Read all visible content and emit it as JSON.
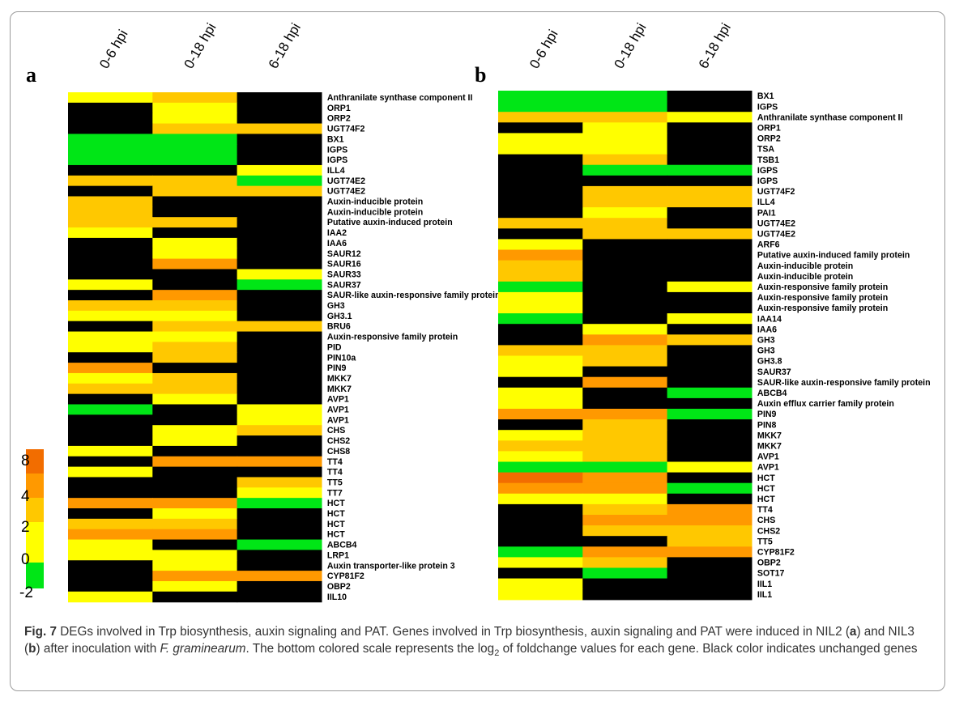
{
  "figure": {
    "caption_label": "Fig. 7",
    "caption_title": " DEGs involved in Trp biosynthesis, auxin signaling and PAT. Genes involved in Trp biosynthesis, auxin signaling and PAT were induced in NIL2 (",
    "caption_a": "a",
    "caption_mid1": ") and NIL3 (",
    "caption_b": "b",
    "caption_mid2": ") after inoculation with ",
    "caption_species": "F. graminearum",
    "caption_mid3": ". The bottom colored scale represents the log",
    "caption_sub": "2",
    "caption_end": " of foldchange values for each gene. Black color indicates unchanged genes"
  },
  "colors": {
    "black": "#000000",
    "green": "#00e616",
    "yellow": "#ffff00",
    "light_orange": "#ffc800",
    "orange": "#ff9900",
    "dark_orange": "#f26d00"
  },
  "chart_data": [
    {
      "type": "heatmap",
      "panel": "a",
      "columns": [
        "0-6 hpi",
        "0-18 hpi",
        "6-18 hpi"
      ],
      "value_scale": "log2 fold change",
      "rows": [
        {
          "gene": "Anthranilate synthase component II",
          "values": [
            0,
            2,
            null
          ]
        },
        {
          "gene": "ORP1",
          "values": [
            null,
            0,
            null
          ]
        },
        {
          "gene": "ORP2",
          "values": [
            null,
            0,
            null
          ]
        },
        {
          "gene": "UGT74F2",
          "values": [
            null,
            2,
            2
          ]
        },
        {
          "gene": "BX1",
          "values": [
            -2,
            -2,
            null
          ]
        },
        {
          "gene": "IGPS",
          "values": [
            -2,
            -2,
            null
          ]
        },
        {
          "gene": "IGPS",
          "values": [
            -2,
            -2,
            null
          ]
        },
        {
          "gene": "ILL4",
          "values": [
            null,
            null,
            0
          ]
        },
        {
          "gene": "UGT74E2",
          "values": [
            2,
            2,
            -2
          ]
        },
        {
          "gene": "UGT74E2",
          "values": [
            null,
            2,
            2
          ]
        },
        {
          "gene": "Auxin-inducible protein",
          "values": [
            2,
            null,
            null
          ]
        },
        {
          "gene": "Auxin-inducible protein",
          "values": [
            2,
            null,
            null
          ]
        },
        {
          "gene": "Putative auxin-induced protein",
          "values": [
            2,
            2,
            null
          ]
        },
        {
          "gene": "IAA2",
          "values": [
            0,
            null,
            null
          ]
        },
        {
          "gene": "IAA6",
          "values": [
            null,
            0,
            null
          ]
        },
        {
          "gene": "SAUR12",
          "values": [
            null,
            0,
            null
          ]
        },
        {
          "gene": "SAUR16",
          "values": [
            null,
            4,
            null
          ]
        },
        {
          "gene": "SAUR33",
          "values": [
            null,
            null,
            0
          ]
        },
        {
          "gene": "SAUR37",
          "values": [
            0,
            null,
            -2
          ]
        },
        {
          "gene": "SAUR-like auxin-responsive family protein",
          "values": [
            null,
            4,
            null
          ]
        },
        {
          "gene": "GH3",
          "values": [
            2,
            2,
            null
          ]
        },
        {
          "gene": "GH3.1",
          "values": [
            0,
            0,
            null
          ]
        },
        {
          "gene": "BRU6",
          "values": [
            null,
            2,
            2
          ]
        },
        {
          "gene": "Auxin-responsive family protein",
          "values": [
            0,
            0,
            null
          ]
        },
        {
          "gene": "PID",
          "values": [
            0,
            2,
            null
          ]
        },
        {
          "gene": "PIN10a",
          "values": [
            null,
            2,
            null
          ]
        },
        {
          "gene": "PIN9",
          "values": [
            4,
            null,
            null
          ]
        },
        {
          "gene": "MKK7",
          "values": [
            0,
            2,
            null
          ]
        },
        {
          "gene": "MKK7",
          "values": [
            2,
            2,
            null
          ]
        },
        {
          "gene": "AVP1",
          "values": [
            null,
            0,
            null
          ]
        },
        {
          "gene": "AVP1",
          "values": [
            -2,
            null,
            0
          ]
        },
        {
          "gene": "AVP1",
          "values": [
            null,
            null,
            0
          ]
        },
        {
          "gene": "CHS",
          "values": [
            null,
            0,
            2
          ]
        },
        {
          "gene": "CHS2",
          "values": [
            null,
            0,
            null
          ]
        },
        {
          "gene": "CHS8",
          "values": [
            0,
            null,
            null
          ]
        },
        {
          "gene": "TT4",
          "values": [
            null,
            4,
            4
          ]
        },
        {
          "gene": "TT4",
          "values": [
            0,
            null,
            null
          ]
        },
        {
          "gene": "TT5",
          "values": [
            null,
            null,
            2
          ]
        },
        {
          "gene": "TT7",
          "values": [
            null,
            null,
            0
          ]
        },
        {
          "gene": "HCT",
          "values": [
            4,
            4,
            -2
          ]
        },
        {
          "gene": "HCT",
          "values": [
            null,
            0,
            null
          ]
        },
        {
          "gene": "HCT",
          "values": [
            2,
            2,
            null
          ]
        },
        {
          "gene": "HCT",
          "values": [
            4,
            4,
            null
          ]
        },
        {
          "gene": "ABCB4",
          "values": [
            0,
            null,
            -2
          ]
        },
        {
          "gene": "LRP1",
          "values": [
            0,
            0,
            null
          ]
        },
        {
          "gene": "Auxin transporter-like protein 3",
          "values": [
            null,
            0,
            null
          ]
        },
        {
          "gene": "CYP81F2",
          "values": [
            null,
            4,
            4
          ]
        },
        {
          "gene": "OBP2",
          "values": [
            null,
            0,
            null
          ]
        },
        {
          "gene": "IIL10",
          "values": [
            0,
            null,
            null
          ]
        }
      ]
    },
    {
      "type": "heatmap",
      "panel": "b",
      "columns": [
        "0-6 hpi",
        "0-18 hpi",
        "6-18 hpi"
      ],
      "value_scale": "log2 fold change",
      "rows": [
        {
          "gene": "BX1",
          "values": [
            -2,
            -2,
            null
          ]
        },
        {
          "gene": "IGPS",
          "values": [
            -2,
            -2,
            null
          ]
        },
        {
          "gene": "Anthranilate synthase component II",
          "values": [
            2,
            2,
            0
          ]
        },
        {
          "gene": "ORP1",
          "values": [
            null,
            0,
            null
          ]
        },
        {
          "gene": "ORP2",
          "values": [
            0,
            0,
            null
          ]
        },
        {
          "gene": "TSA",
          "values": [
            0,
            0,
            null
          ]
        },
        {
          "gene": "TSB1",
          "values": [
            null,
            2,
            null
          ]
        },
        {
          "gene": "IGPS",
          "values": [
            null,
            -2,
            -2
          ]
        },
        {
          "gene": "IGPS",
          "values": [
            null,
            null,
            null
          ]
        },
        {
          "gene": "UGT74F2",
          "values": [
            null,
            2,
            2
          ]
        },
        {
          "gene": "ILL4",
          "values": [
            null,
            2,
            2
          ]
        },
        {
          "gene": "PAI1",
          "values": [
            null,
            0,
            null
          ]
        },
        {
          "gene": "UGT74E2",
          "values": [
            2,
            2,
            null
          ]
        },
        {
          "gene": "UGT74E2",
          "values": [
            null,
            2,
            2
          ]
        },
        {
          "gene": "ARF6",
          "values": [
            0,
            null,
            null
          ]
        },
        {
          "gene": "Putative auxin-induced family protein",
          "values": [
            4,
            null,
            null
          ]
        },
        {
          "gene": "Auxin-inducible protein",
          "values": [
            2,
            null,
            null
          ]
        },
        {
          "gene": "Auxin-inducible protein",
          "values": [
            2,
            null,
            null
          ]
        },
        {
          "gene": "Auxin-responsive family protein",
          "values": [
            -2,
            null,
            0
          ]
        },
        {
          "gene": "Auxin-responsive family protein",
          "values": [
            0,
            null,
            null
          ]
        },
        {
          "gene": "Auxin-responsive family protein",
          "values": [
            0,
            null,
            null
          ]
        },
        {
          "gene": "IAA14",
          "values": [
            -2,
            null,
            0
          ]
        },
        {
          "gene": "IAA6",
          "values": [
            null,
            0,
            null
          ]
        },
        {
          "gene": "GH3",
          "values": [
            null,
            4,
            2
          ]
        },
        {
          "gene": "GH3",
          "values": [
            2,
            2,
            null
          ]
        },
        {
          "gene": "GH3.8",
          "values": [
            0,
            2,
            null
          ]
        },
        {
          "gene": "SAUR37",
          "values": [
            0,
            null,
            null
          ]
        },
        {
          "gene": "SAUR-like auxin-responsive family protein",
          "values": [
            null,
            4,
            null
          ]
        },
        {
          "gene": "ABCB4",
          "values": [
            0,
            null,
            -2
          ]
        },
        {
          "gene": "Auxin efflux carrier family protein",
          "values": [
            0,
            null,
            null
          ]
        },
        {
          "gene": "PIN9",
          "values": [
            4,
            4,
            -2
          ]
        },
        {
          "gene": "PIN8",
          "values": [
            null,
            2,
            null
          ]
        },
        {
          "gene": "MKK7",
          "values": [
            0,
            2,
            null
          ]
        },
        {
          "gene": "MKK7",
          "values": [
            2,
            2,
            null
          ]
        },
        {
          "gene": "AVP1",
          "values": [
            0,
            2,
            null
          ]
        },
        {
          "gene": "AVP1",
          "values": [
            -2,
            -2,
            0
          ]
        },
        {
          "gene": "HCT",
          "values": [
            8,
            4,
            null
          ]
        },
        {
          "gene": "HCT",
          "values": [
            4,
            4,
            -2
          ]
        },
        {
          "gene": "HCT",
          "values": [
            0,
            0,
            null
          ]
        },
        {
          "gene": "TT4",
          "values": [
            null,
            2,
            4
          ]
        },
        {
          "gene": "CHS",
          "values": [
            null,
            4,
            4
          ]
        },
        {
          "gene": "CHS2",
          "values": [
            null,
            2,
            2
          ]
        },
        {
          "gene": "TT5",
          "values": [
            null,
            null,
            2
          ]
        },
        {
          "gene": "CYP81F2",
          "values": [
            -2,
            4,
            4
          ]
        },
        {
          "gene": "OBP2",
          "values": [
            0,
            2,
            null
          ]
        },
        {
          "gene": "SOT17",
          "values": [
            null,
            -2,
            null
          ]
        },
        {
          "gene": "IIL1",
          "values": [
            0,
            null,
            null
          ]
        },
        {
          "gene": "IIL1",
          "values": [
            0,
            null,
            null
          ]
        }
      ]
    },
    {
      "type": "colorbar",
      "label": "log2 fold change",
      "ticks": [
        "8",
        "4",
        "2",
        "0",
        "-2"
      ],
      "tick_values": [
        8,
        4,
        2,
        0,
        -2
      ]
    }
  ]
}
